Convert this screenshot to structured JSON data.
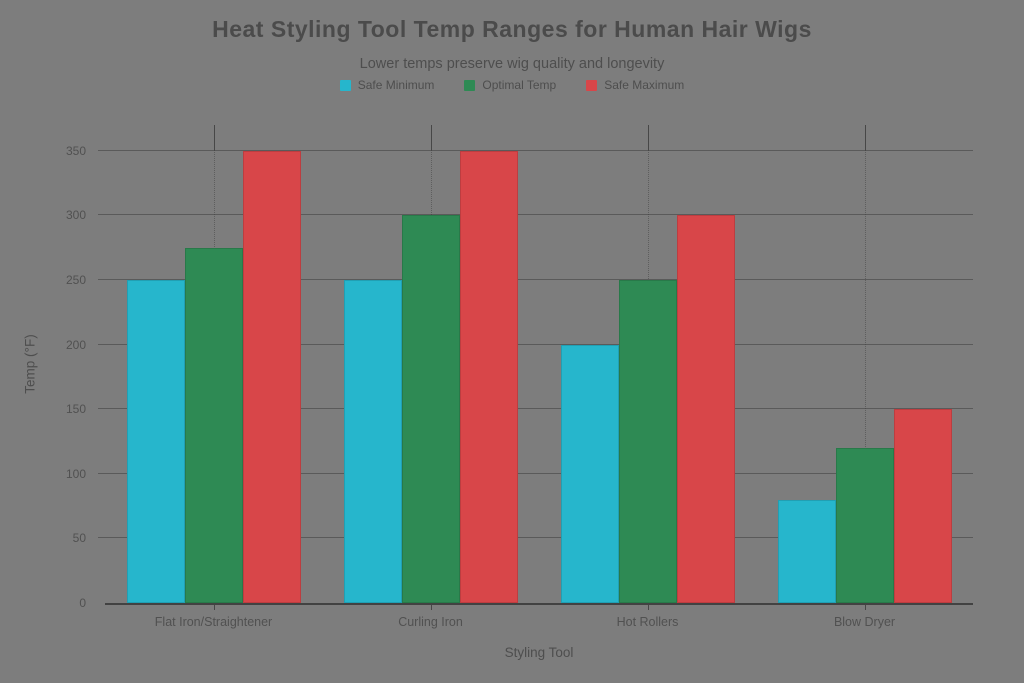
{
  "header": {
    "title": "Heat Styling Tool Temp Ranges for Human Hair Wigs",
    "subtitle": "Lower temps preserve wig quality and longevity"
  },
  "colors": {
    "background": "#7d7d7d",
    "text": "#4e4e4e",
    "gridline": "#5f5f5f",
    "axis": "#424242",
    "safe_minimum": "#26b6cc",
    "optimal_temp": "#2e8a54",
    "safe_maximum": "#d84649"
  },
  "chart_data": {
    "type": "bar",
    "title": "Heat Styling Tool Temp Ranges for Human Hair Wigs",
    "subtitle": "Lower temps preserve wig quality and longevity",
    "categories": [
      "Flat Iron/Straightener",
      "Curling Iron",
      "Hot Rollers",
      "Blow Dryer"
    ],
    "series": [
      {
        "name": "Safe Minimum",
        "color": "#26b6cc",
        "values": [
          250,
          250,
          200,
          80
        ]
      },
      {
        "name": "Optimal Temp",
        "color": "#2e8a54",
        "values": [
          275,
          300,
          250,
          120
        ]
      },
      {
        "name": "Safe Maximum",
        "color": "#d84649",
        "values": [
          350,
          350,
          300,
          150
        ]
      }
    ],
    "xlabel": "Styling Tool",
    "ylabel": "Temp (°F)",
    "ylim": [
      0,
      370
    ],
    "yticks": [
      0,
      50,
      100,
      150,
      200,
      250,
      300,
      350
    ],
    "grid": true,
    "legend_position": "top"
  }
}
